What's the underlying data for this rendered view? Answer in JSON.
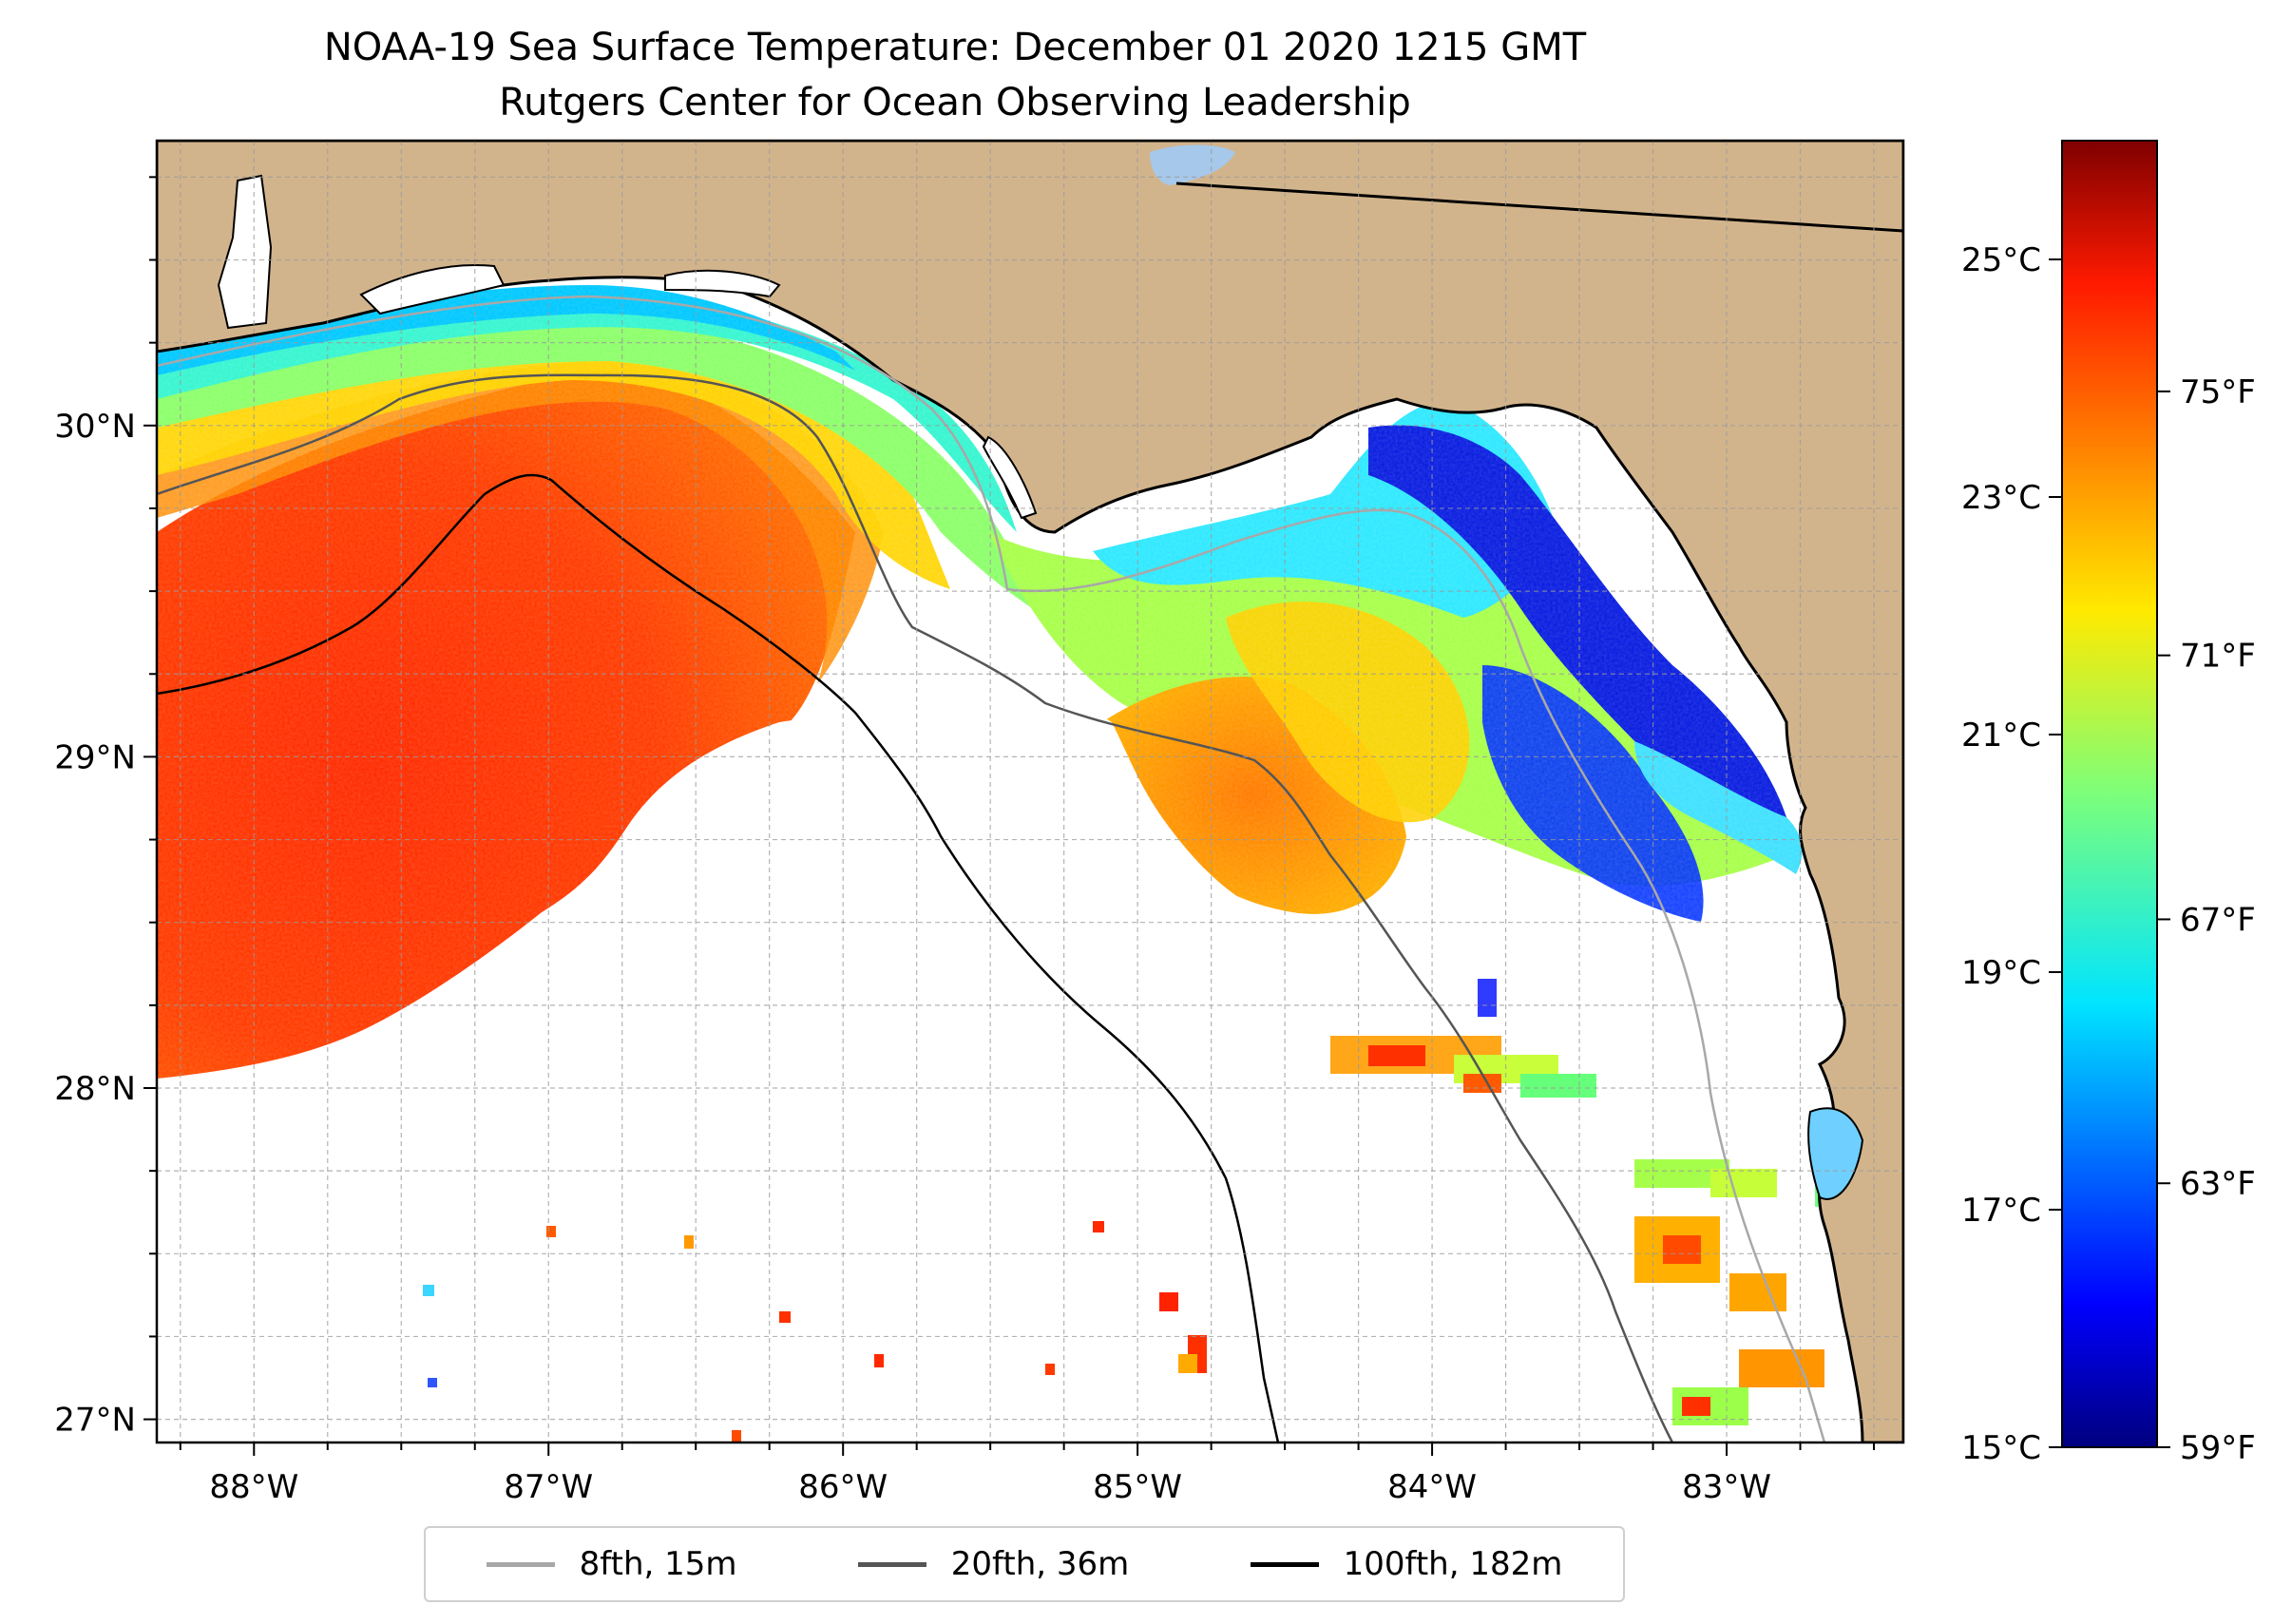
{
  "title": {
    "line1": "NOAA-19 Sea Surface Temperature: December 01 2020 1215 GMT",
    "line2": "Rutgers Center for Ocean Observing Leadership"
  },
  "map": {
    "lon_range": [
      -88.33,
      -82.4
    ],
    "lat_range": [
      26.93,
      30.86
    ],
    "land_color": "#d2b48c",
    "lon_ticks": [
      {
        "value": -88,
        "label": "88°W"
      },
      {
        "value": -87,
        "label": "87°W"
      },
      {
        "value": -86,
        "label": "86°W"
      },
      {
        "value": -85,
        "label": "85°W"
      },
      {
        "value": -84,
        "label": "84°W"
      },
      {
        "value": -83,
        "label": "83°W"
      }
    ],
    "lat_ticks": [
      {
        "value": 27,
        "label": "27°N"
      },
      {
        "value": 28,
        "label": "28°N"
      },
      {
        "value": 29,
        "label": "29°N"
      },
      {
        "value": 30,
        "label": "30°N"
      }
    ],
    "grid": true
  },
  "colorbar": {
    "colormap": "jet",
    "range_c": [
      15,
      26
    ],
    "celsius_ticks": [
      {
        "value": 15,
        "label": "15°C"
      },
      {
        "value": 17,
        "label": "17°C"
      },
      {
        "value": 19,
        "label": "19°C"
      },
      {
        "value": 21,
        "label": "21°C"
      },
      {
        "value": 23,
        "label": "23°C"
      },
      {
        "value": 25,
        "label": "25°C"
      }
    ],
    "fahrenheit_ticks": [
      {
        "value": 59,
        "label": "59°F"
      },
      {
        "value": 63,
        "label": "63°F"
      },
      {
        "value": 67,
        "label": "67°F"
      },
      {
        "value": 71,
        "label": "71°F"
      },
      {
        "value": 75,
        "label": "75°F"
      }
    ]
  },
  "legend": {
    "items": [
      {
        "label": "8fth, 15m",
        "color": "#a8a8a8"
      },
      {
        "label": "20fth, 36m",
        "color": "#555555"
      },
      {
        "label": "100fth, 182m",
        "color": "#000000"
      }
    ]
  }
}
